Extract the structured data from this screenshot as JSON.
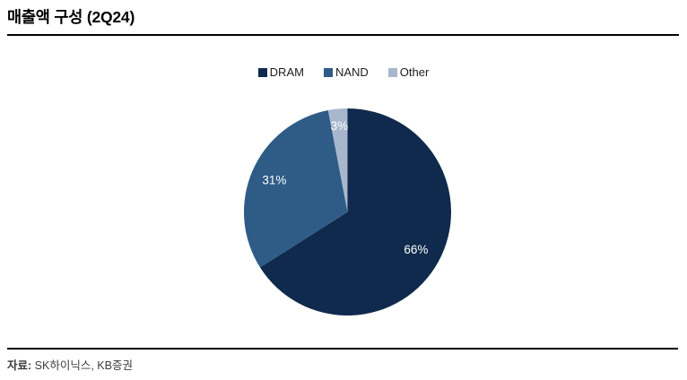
{
  "page": {
    "title": "매출액 구성 (2Q24)",
    "source_prefix": "자료:",
    "source_rest": " SK하이닉스, KB증권"
  },
  "chart_data": {
    "type": "pie",
    "title": "매출액 구성 (2Q24)",
    "labels": [
      "DRAM",
      "NAND",
      "Other"
    ],
    "values": [
      66,
      31,
      3
    ],
    "unit": "%",
    "data_labels": [
      "66%",
      "31%",
      "3%"
    ],
    "colors": [
      "#0f2a4c",
      "#2e5c87",
      "#a9b7ce"
    ],
    "label_color": "#ffffff",
    "start_angle_deg": 0,
    "direction": "clockwise",
    "legend_position": "top",
    "source": "자료: SK하이닉스, KB증권",
    "label_radius_fraction": [
      0.755,
      0.77,
      0.835
    ]
  }
}
